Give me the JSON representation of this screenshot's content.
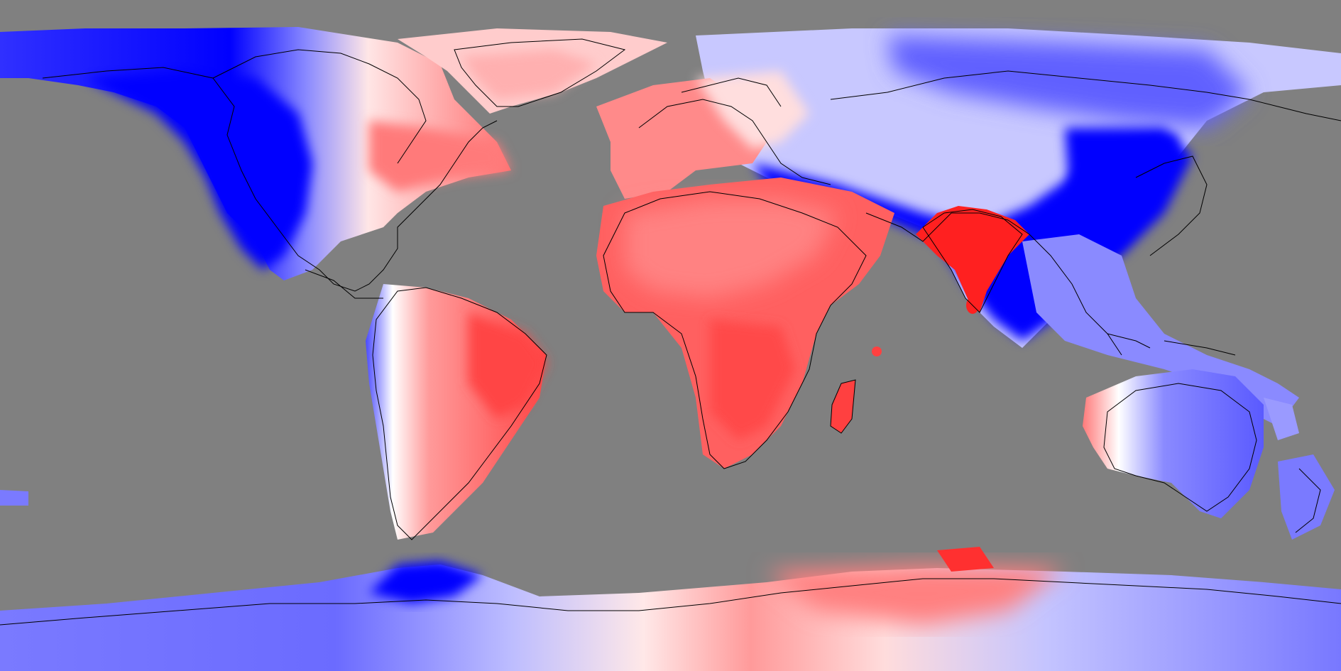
{
  "map": {
    "projection": "equirectangular",
    "background_color": "#808080",
    "coastline_color": "#000000",
    "colors": {
      "strong_blue": "#0000ff",
      "mid_blue": "#5a5aff",
      "light_blue": "#bcbcff",
      "white": "#ffffff",
      "light_red": "#ffbcbc",
      "mid_red": "#ff6a6a",
      "strong_red": "#ff2a2a"
    }
  }
}
